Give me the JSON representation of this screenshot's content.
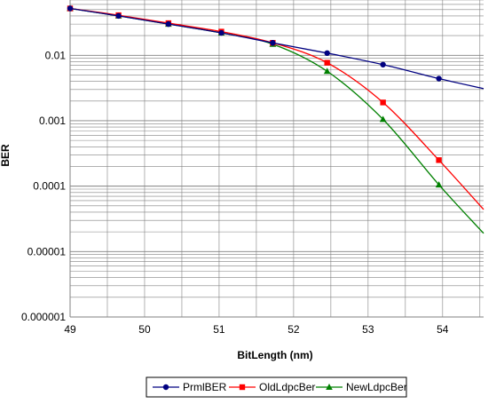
{
  "chart_data": {
    "type": "line",
    "title": "",
    "xlabel": "BitLength (nm)",
    "ylabel": "BER",
    "x_scale": "linear",
    "y_scale": "log",
    "xlim": [
      49,
      54.55
    ],
    "ylim": [
      1e-06,
      0.07
    ],
    "x_ticks": [
      49,
      50,
      51,
      52,
      53,
      54
    ],
    "x_tick_labels": [
      "49",
      "50",
      "51",
      "52",
      "53",
      "54"
    ],
    "y_ticks": [
      0.01,
      0.001,
      0.0001,
      1e-05,
      1e-06
    ],
    "y_tick_labels": [
      "0.01",
      "0.001",
      "0.0001",
      "0.00001",
      "0.000001"
    ],
    "grid": true,
    "legend_position": "bottom",
    "series": [
      {
        "name": "PrmlBER",
        "color": "#000080",
        "marker": "circle",
        "points": [
          [
            49.0,
            0.052
          ],
          [
            49.65,
            0.04
          ],
          [
            50.32,
            0.03
          ],
          [
            51.03,
            0.022
          ],
          [
            51.72,
            0.0155
          ],
          [
            52.45,
            0.0108
          ],
          [
            53.2,
            0.0072
          ],
          [
            53.95,
            0.0044
          ],
          [
            54.55,
            0.0031
          ]
        ]
      },
      {
        "name": "OldLdpcBer",
        "color": "#ff0000",
        "marker": "square",
        "points": [
          [
            49.0,
            0.052
          ],
          [
            49.65,
            0.041
          ],
          [
            50.32,
            0.031
          ],
          [
            51.03,
            0.023
          ],
          [
            51.72,
            0.0155
          ],
          [
            52.45,
            0.0077
          ],
          [
            53.2,
            0.0019
          ],
          [
            53.95,
            0.00025
          ],
          [
            54.55,
            4.4e-05
          ]
        ]
      },
      {
        "name": "NewLdpcBer",
        "color": "#008000",
        "marker": "triangle",
        "points": [
          [
            49.0,
            0.052
          ],
          [
            49.65,
            0.04
          ],
          [
            50.32,
            0.03
          ],
          [
            51.03,
            0.022
          ],
          [
            51.72,
            0.0148
          ],
          [
            52.45,
            0.0057
          ],
          [
            53.2,
            0.00105
          ],
          [
            53.95,
            0.000105
          ],
          [
            54.55,
            1.9e-05
          ]
        ]
      }
    ]
  }
}
